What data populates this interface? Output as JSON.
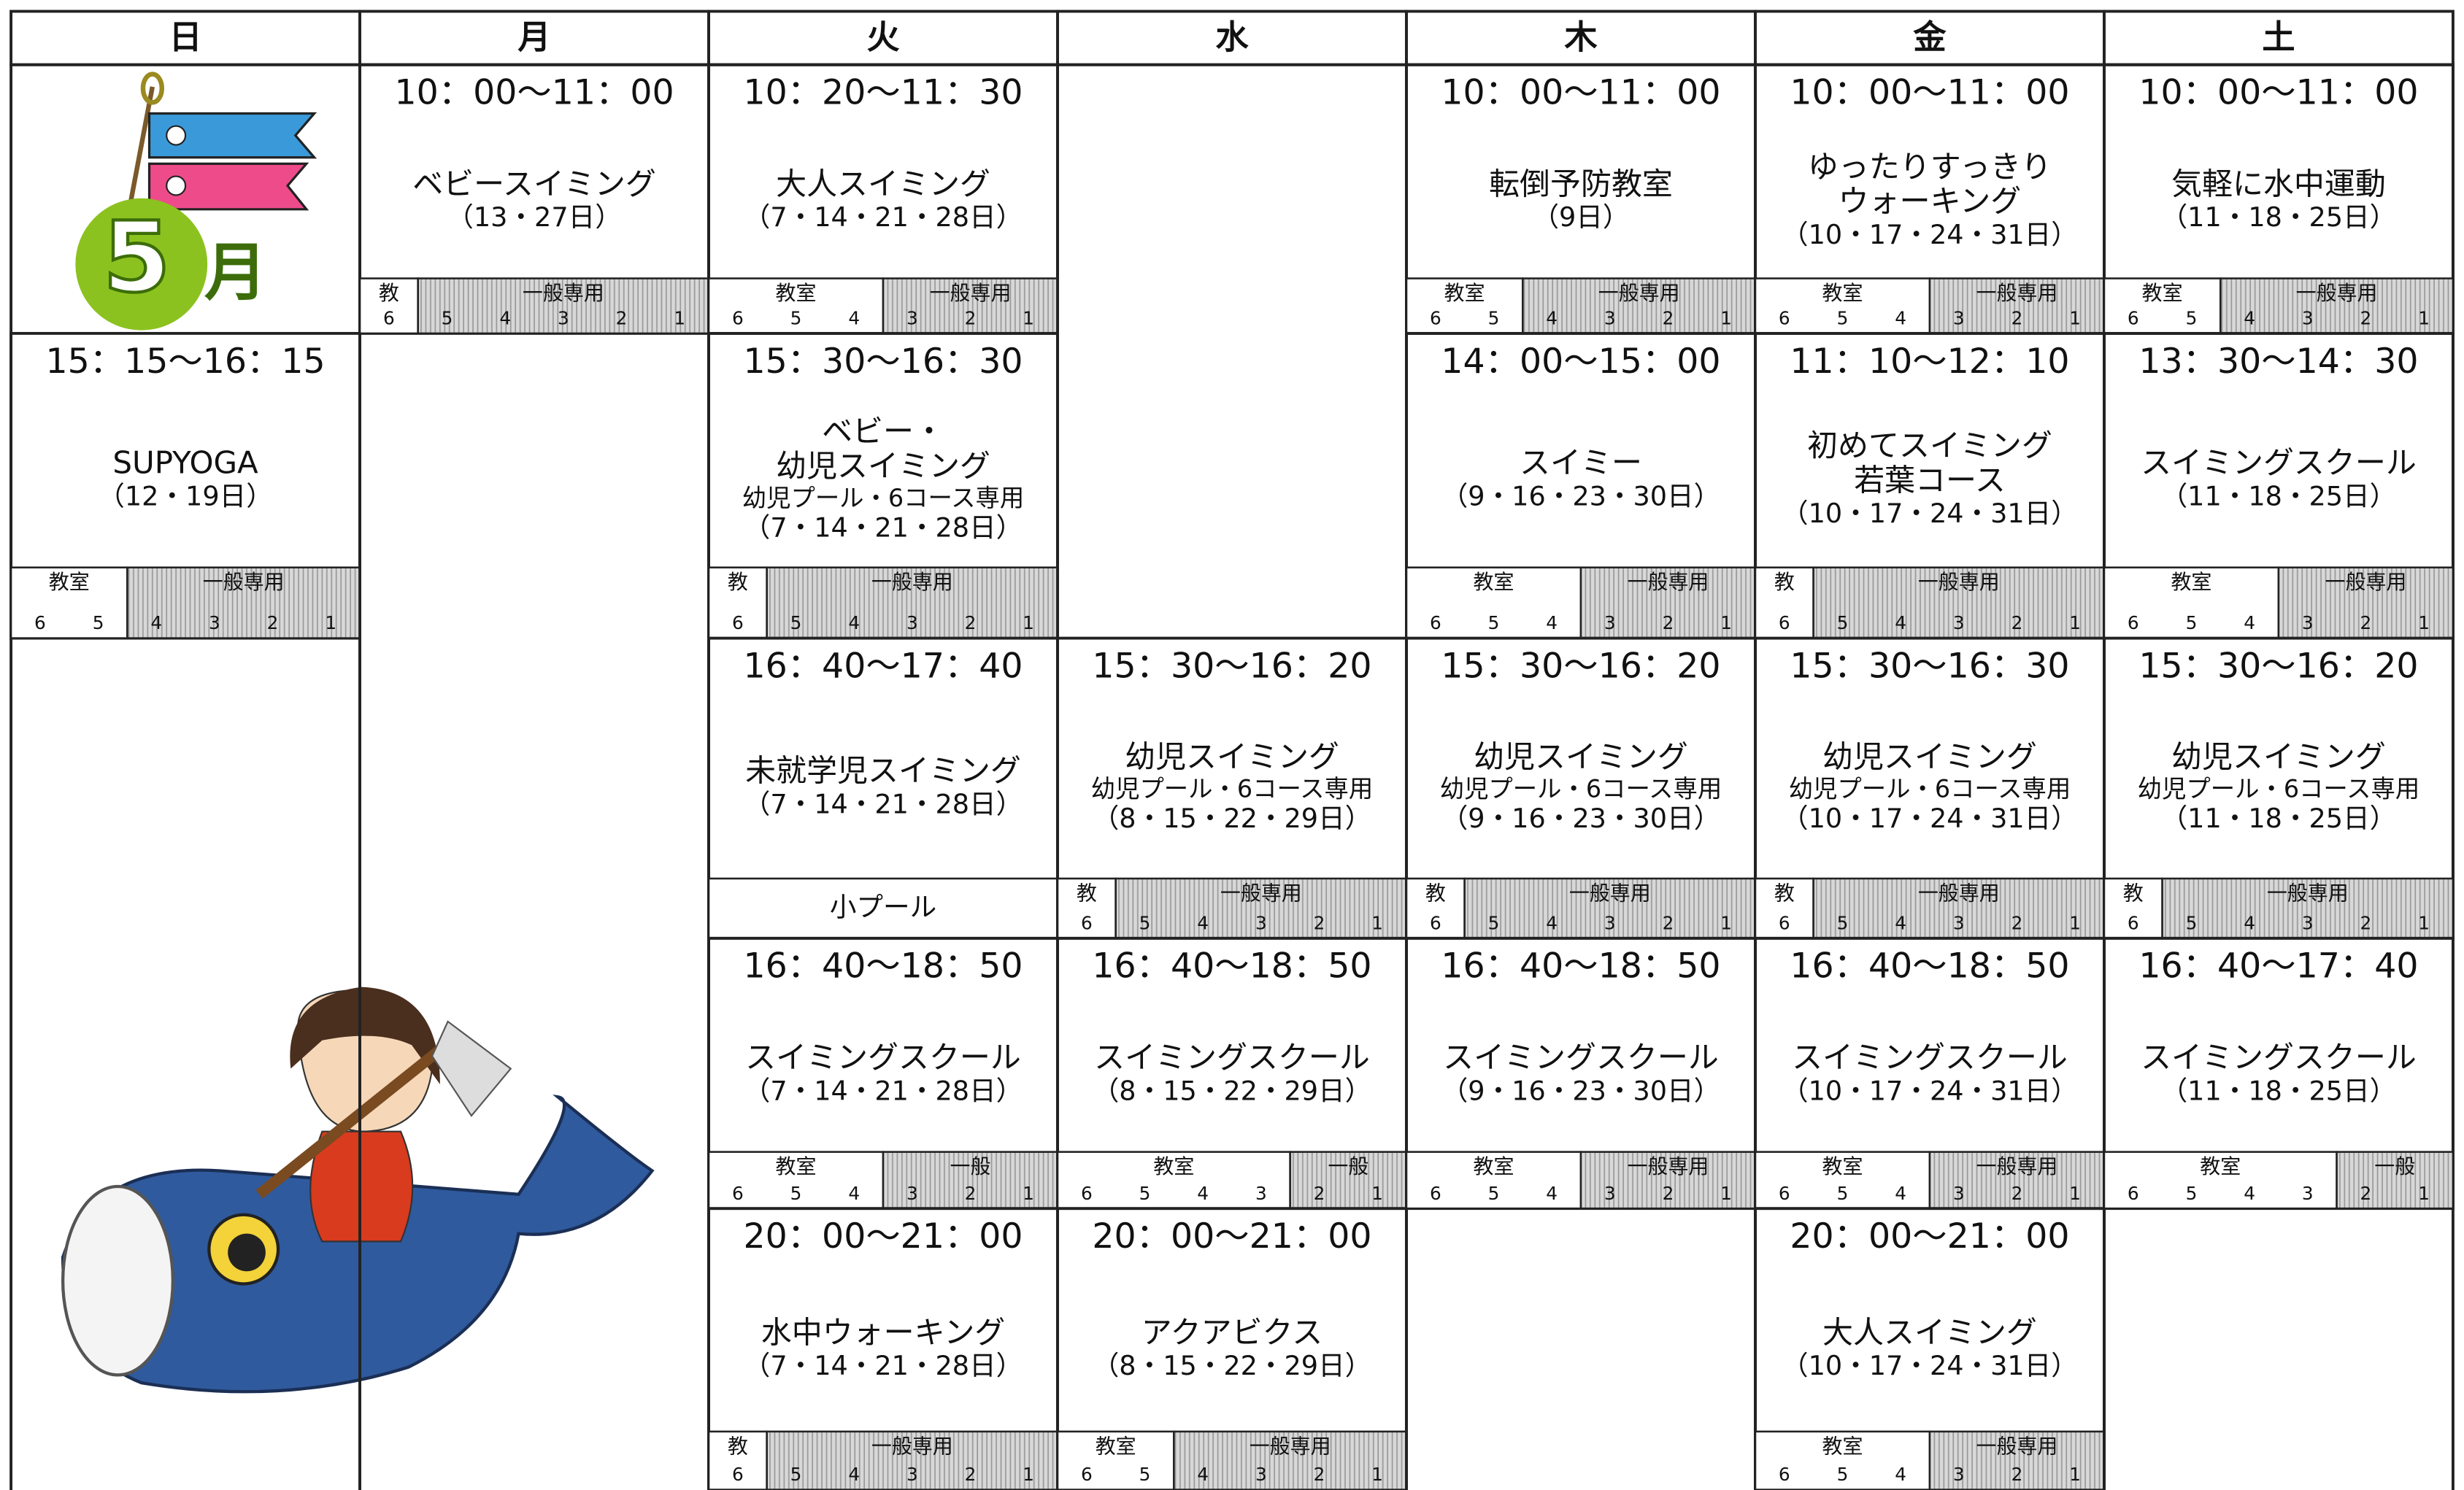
{
  "header": {
    "days": [
      "日",
      "月",
      "火",
      "水",
      "木",
      "金",
      "土"
    ]
  },
  "badge": {
    "number": "5",
    "unit": "月"
  },
  "columns": [
    {
      "slots": [
        {
          "time": "15：15〜16：15",
          "lines": [
            "SUPYOGA",
            "（12・19日）"
          ],
          "lane": [
            {
              "label": "教室",
              "numbers": [
                6,
                5
              ]
            },
            {
              "label": "一般専用",
              "numbers": [
                4,
                3,
                2,
                1
              ]
            }
          ]
        }
      ]
    },
    {
      "slots": [
        {
          "time": "10：00〜11：00",
          "lines": [
            "ベビースイミング",
            "（13・27日）"
          ],
          "lane": [
            {
              "label": "教",
              "numbers": [
                6
              ]
            },
            {
              "label": "一般専用",
              "numbers": [
                5,
                4,
                3,
                2,
                1
              ]
            }
          ]
        }
      ]
    },
    {
      "slots": [
        {
          "time": "10：20〜11：30",
          "lines": [
            "大人スイミング",
            "（7・14・21・28日）"
          ],
          "lane": [
            {
              "label": "教室",
              "numbers": [
                6,
                5,
                4
              ]
            },
            {
              "label": "一般専用",
              "numbers": [
                3,
                2,
                1
              ]
            }
          ]
        },
        {
          "time": "15：30〜16：30",
          "lines": [
            "ベビー・",
            "幼児スイミング",
            "幼児プール・6コース専用",
            "（7・14・21・28日）"
          ],
          "lane": [
            {
              "label": "教",
              "numbers": [
                6
              ]
            },
            {
              "label": "一般専用",
              "numbers": [
                5,
                4,
                3,
                2,
                1
              ]
            }
          ]
        },
        {
          "time": "16：40〜17：40",
          "lines": [
            "未就学児スイミング",
            "（7・14・21・28日）"
          ],
          "lane": [
            {
              "label": "小プール",
              "numbers": []
            }
          ]
        },
        {
          "time": "16：40〜18：50",
          "lines": [
            "スイミングスクール",
            "（7・14・21・28日）"
          ],
          "lane": [
            {
              "label": "教室",
              "numbers": [
                6,
                5,
                4
              ]
            },
            {
              "label": "一般",
              "numbers": [
                3,
                2,
                1
              ]
            }
          ]
        },
        {
          "time": "20：00〜21：00",
          "lines": [
            "水中ウォーキング",
            "（7・14・21・28日）"
          ],
          "lane": [
            {
              "label": "教",
              "numbers": [
                6
              ]
            },
            {
              "label": "一般専用",
              "numbers": [
                5,
                4,
                3,
                2,
                1
              ]
            }
          ]
        }
      ]
    },
    {
      "slots": [
        {
          "time": "15：30〜16：20",
          "lines": [
            "幼児スイミング",
            "幼児プール・6コース専用",
            "（8・15・22・29日）"
          ],
          "lane": [
            {
              "label": "教",
              "numbers": [
                6
              ]
            },
            {
              "label": "一般専用",
              "numbers": [
                5,
                4,
                3,
                2,
                1
              ]
            }
          ]
        },
        {
          "time": "16：40〜18：50",
          "lines": [
            "スイミングスクール",
            "（8・15・22・29日）"
          ],
          "lane": [
            {
              "label": "教室",
              "numbers": [
                6,
                5,
                4,
                3
              ]
            },
            {
              "label": "一般",
              "numbers": [
                2,
                1
              ]
            }
          ]
        },
        {
          "time": "20：00〜21：00",
          "lines": [
            "アクアビクス",
            "（8・15・22・29日）"
          ],
          "lane": [
            {
              "label": "教室",
              "numbers": [
                6,
                5
              ]
            },
            {
              "label": "一般専用",
              "numbers": [
                4,
                3,
                2,
                1
              ]
            }
          ]
        }
      ]
    },
    {
      "slots": [
        {
          "time": "10：00〜11：00",
          "lines": [
            "転倒予防教室",
            "（9日）"
          ],
          "lane": [
            {
              "label": "教室",
              "numbers": [
                6,
                5
              ]
            },
            {
              "label": "一般専用",
              "numbers": [
                4,
                3,
                2,
                1
              ]
            }
          ]
        },
        {
          "time": "14：00〜15：00",
          "lines": [
            "スイミー",
            "（9・16・23・30日）"
          ],
          "lane": [
            {
              "label": "教室",
              "numbers": [
                6,
                5,
                4
              ]
            },
            {
              "label": "一般専用",
              "numbers": [
                3,
                2,
                1
              ]
            }
          ]
        },
        {
          "time": "15：30〜16：20",
          "lines": [
            "幼児スイミング",
            "幼児プール・6コース専用",
            "（9・16・23・30日）"
          ],
          "lane": [
            {
              "label": "教",
              "numbers": [
                6
              ]
            },
            {
              "label": "一般専用",
              "numbers": [
                5,
                4,
                3,
                2,
                1
              ]
            }
          ]
        },
        {
          "time": "16：40〜18：50",
          "lines": [
            "スイミングスクール",
            "（9・16・23・30日）"
          ],
          "lane": [
            {
              "label": "教室",
              "numbers": [
                6,
                5,
                4
              ]
            },
            {
              "label": "一般専用",
              "numbers": [
                3,
                2,
                1
              ]
            }
          ]
        }
      ]
    },
    {
      "slots": [
        {
          "time": "10：00〜11：00",
          "lines": [
            "ゆったりすっきり",
            "ウォーキング",
            "（10・17・24・31日）"
          ],
          "lane": [
            {
              "label": "教室",
              "numbers": [
                6,
                5,
                4
              ]
            },
            {
              "label": "一般専用",
              "numbers": [
                3,
                2,
                1
              ]
            }
          ]
        },
        {
          "time": "11：10〜12：10",
          "lines": [
            "初めてスイミング",
            "若葉コース",
            "（10・17・24・31日）"
          ],
          "lane": [
            {
              "label": "教",
              "numbers": [
                6
              ]
            },
            {
              "label": "一般専用",
              "numbers": [
                5,
                4,
                3,
                2,
                1
              ]
            }
          ]
        },
        {
          "time": "15：30〜16：30",
          "lines": [
            "幼児スイミング",
            "幼児プール・6コース専用",
            "（10・17・24・31日）"
          ],
          "lane": [
            {
              "label": "教",
              "numbers": [
                6
              ]
            },
            {
              "label": "一般専用",
              "numbers": [
                5,
                4,
                3,
                2,
                1
              ]
            }
          ]
        },
        {
          "time": "16：40〜18：50",
          "lines": [
            "スイミングスクール",
            "（10・17・24・31日）"
          ],
          "lane": [
            {
              "label": "教室",
              "numbers": [
                6,
                5,
                4
              ]
            },
            {
              "label": "一般専用",
              "numbers": [
                3,
                2,
                1
              ]
            }
          ]
        },
        {
          "time": "20：00〜21：00",
          "lines": [
            "大人スイミング",
            "（10・17・24・31日）"
          ],
          "lane": [
            {
              "label": "教室",
              "numbers": [
                6,
                5,
                4
              ]
            },
            {
              "label": "一般専用",
              "numbers": [
                3,
                2,
                1
              ]
            }
          ]
        }
      ]
    },
    {
      "slots": [
        {
          "time": "10：00〜11：00",
          "lines": [
            "気軽に水中運動",
            "（11・18・25日）"
          ],
          "lane": [
            {
              "label": "教室",
              "numbers": [
                6,
                5
              ]
            },
            {
              "label": "一般専用",
              "numbers": [
                4,
                3,
                2,
                1
              ]
            }
          ]
        },
        {
          "time": "13：30〜14：30",
          "lines": [
            "スイミングスクール",
            "（11・18・25日）"
          ],
          "lane": [
            {
              "label": "教室",
              "numbers": [
                6,
                5,
                4
              ]
            },
            {
              "label": "一般専用",
              "numbers": [
                3,
                2,
                1
              ]
            }
          ]
        },
        {
          "time": "15：30〜16：20",
          "lines": [
            "幼児スイミング",
            "幼児プール・6コース専用",
            "（11・18・25日）"
          ],
          "lane": [
            {
              "label": "教",
              "numbers": [
                6
              ]
            },
            {
              "label": "一般専用",
              "numbers": [
                5,
                4,
                3,
                2,
                1
              ]
            }
          ]
        },
        {
          "time": "16：40〜17：40",
          "lines": [
            "スイミングスクール",
            "（11・18・25日）"
          ],
          "lane": [
            {
              "label": "教室",
              "numbers": [
                6,
                5,
                4,
                3
              ]
            },
            {
              "label": "一般",
              "numbers": [
                2,
                1
              ]
            }
          ]
        }
      ]
    }
  ]
}
